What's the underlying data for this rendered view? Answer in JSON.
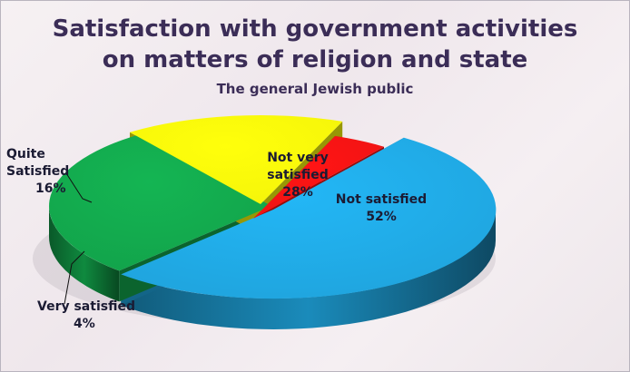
{
  "title_line1": "Satisfaction with government activities",
  "title_line2": "on matters of religion and state",
  "subtitle": "The general Jewish public",
  "chart_data": {
    "type": "pie",
    "title": "Satisfaction with government activities on matters of religion and state",
    "subtitle": "The general Jewish public",
    "slices": [
      {
        "label": "Not satisfied",
        "value": 52,
        "display": "52%",
        "color": "#1fa3dc"
      },
      {
        "label": "Not very satisfied",
        "value": 28,
        "display": "28%",
        "color": "#12a24a"
      },
      {
        "label": "Quite Satisfied",
        "value": 16,
        "display": "16%",
        "color": "#f4f40a"
      },
      {
        "label": "Very satisfied",
        "value": 4,
        "display": "4%",
        "color": "#ee1313"
      }
    ],
    "style": "3d-exploded"
  }
}
